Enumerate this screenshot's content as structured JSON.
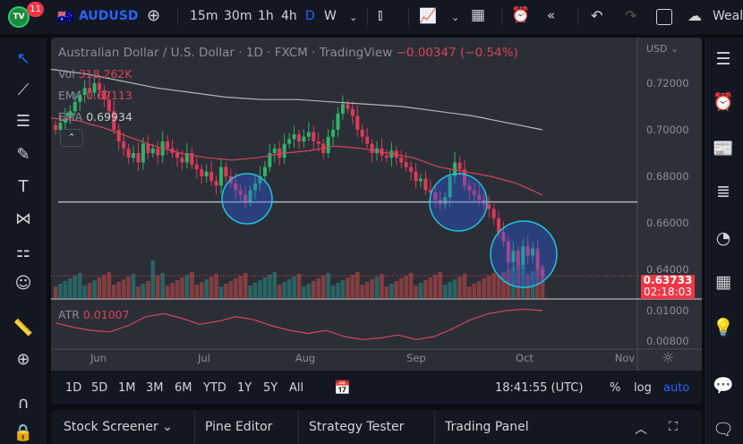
{
  "topbar": {
    "notifications": "11",
    "symbol": "AUDUSD",
    "intervals": [
      "15m",
      "30m",
      "1h",
      "4h",
      "D",
      "W"
    ],
    "active_interval": "D",
    "account": "Wealt",
    "accent": "#2962ff"
  },
  "chart": {
    "title": "Australian Dollar / U.S. Dollar · 1D · FXCM · TradingView",
    "change": "−0.00347 (−0.54%)",
    "vol_label": "Vol",
    "vol_value": "318.262K",
    "ema1_label": "EMA",
    "ema1_value": "0.67113",
    "ema2_label": "EMA",
    "ema2_value": "0.69934",
    "currency": "USD",
    "price_ticks": [
      "0.72000",
      "0.70000",
      "0.68000",
      "0.66000",
      "0.64000"
    ],
    "last_price": "0.63733",
    "countdown": "02:18:03",
    "atr_label": "ATR",
    "atr_value": "0.01007",
    "atr_ticks": [
      "0.01000",
      "0.00800"
    ],
    "months": [
      "Jun",
      "Jul",
      "Aug",
      "Sep",
      "Oct",
      "Nov"
    ],
    "up_color": "#26a69a",
    "down_color": "#ef5350",
    "ema1_color": "#d6455a",
    "ema2_color": "#b2b5be"
  },
  "chart_data": {
    "type": "candlestick",
    "closes": [
      0.7,
      0.703,
      0.705,
      0.708,
      0.712,
      0.715,
      0.718,
      0.716,
      0.72,
      0.717,
      0.713,
      0.708,
      0.7,
      0.695,
      0.692,
      0.688,
      0.69,
      0.686,
      0.694,
      0.69,
      0.692,
      0.689,
      0.695,
      0.692,
      0.69,
      0.688,
      0.686,
      0.69,
      0.685,
      0.683,
      0.68,
      0.682,
      0.678,
      0.676,
      0.684,
      0.68,
      0.677,
      0.674,
      0.672,
      0.669,
      0.674,
      0.677,
      0.68,
      0.684,
      0.69,
      0.692,
      0.688,
      0.694,
      0.696,
      0.698,
      0.695,
      0.697,
      0.699,
      0.695,
      0.694,
      0.69,
      0.697,
      0.7,
      0.707,
      0.711,
      0.709,
      0.706,
      0.7,
      0.697,
      0.694,
      0.69,
      0.692,
      0.689,
      0.688,
      0.691,
      0.688,
      0.686,
      0.684,
      0.682,
      0.678,
      0.679,
      0.674,
      0.673,
      0.67,
      0.668,
      0.671,
      0.68,
      0.686,
      0.683,
      0.676,
      0.674,
      0.672,
      0.67,
      0.668,
      0.666,
      0.662,
      0.656,
      0.652,
      0.643,
      0.648,
      0.642,
      0.65,
      0.646,
      0.649,
      0.64,
      0.637
    ],
    "ema_fast": [
      0.705,
      0.704,
      0.701,
      0.697,
      0.693,
      0.69,
      0.688,
      0.687,
      0.688,
      0.69,
      0.691,
      0.693,
      0.692,
      0.69,
      0.688,
      0.684,
      0.682,
      0.68,
      0.677,
      0.672
    ],
    "ema_slow": [
      0.726,
      0.724,
      0.721,
      0.718,
      0.716,
      0.714,
      0.713,
      0.713,
      0.712,
      0.711,
      0.71,
      0.708,
      0.706,
      0.703,
      0.7
    ],
    "horizontal_level": 0.669,
    "atr": [
      0.0092,
      0.0089,
      0.0087,
      0.0086,
      0.009,
      0.0096,
      0.0098,
      0.0095,
      0.0091,
      0.0093,
      0.0096,
      0.0094,
      0.009,
      0.0087,
      0.0085,
      0.0087,
      0.0083,
      0.0081,
      0.0082,
      0.0084,
      0.0081,
      0.0083,
      0.0088,
      0.0094,
      0.0098,
      0.01,
      0.0101,
      0.01
    ],
    "ylim": [
      0.632,
      0.728
    ]
  },
  "bottom": {
    "ranges": [
      "1D",
      "5D",
      "1M",
      "3M",
      "6M",
      "YTD",
      "1Y",
      "5Y",
      "All"
    ],
    "clock": "18:41:55 (UTC)",
    "pct": "%",
    "log": "log",
    "auto": "auto"
  },
  "panels": {
    "tabs": [
      "Stock Screener",
      "Pine Editor",
      "Strategy Tester",
      "Trading Panel"
    ]
  }
}
